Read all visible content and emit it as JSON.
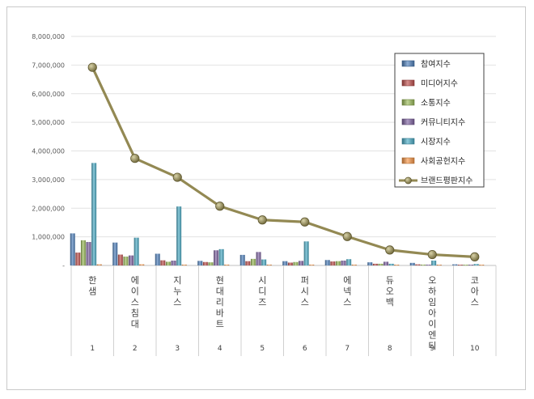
{
  "chart_data": {
    "type": "bar",
    "ylim": [
      0,
      8000000
    ],
    "y_ticks": [
      "-",
      "1,000,000",
      "2,000,000",
      "3,000,000",
      "4,000,000",
      "5,000,000",
      "6,000,000",
      "7,000,000",
      "8,000,000"
    ],
    "grid": true,
    "legend_position": "right",
    "categories": [
      "한샘",
      "에이스침대",
      "지누스",
      "현대리바트",
      "시디즈",
      "퍼시스",
      "에넥스",
      "듀오백",
      "오하임아이엔티",
      "코아스"
    ],
    "ranks": [
      "1",
      "2",
      "3",
      "4",
      "5",
      "6",
      "7",
      "8",
      "9",
      "10"
    ],
    "series": [
      {
        "name": "참여지수",
        "type": "bar",
        "color": "#4f81bd",
        "values": [
          1120000,
          800000,
          410000,
          160000,
          370000,
          150000,
          190000,
          110000,
          90000,
          40000
        ]
      },
      {
        "name": "미디어지수",
        "type": "bar",
        "color": "#c0504d",
        "values": [
          450000,
          380000,
          180000,
          120000,
          150000,
          100000,
          140000,
          60000,
          40000,
          25000
        ]
      },
      {
        "name": "소통지수",
        "type": "bar",
        "color": "#9bbb59",
        "values": [
          880000,
          310000,
          130000,
          110000,
          230000,
          120000,
          150000,
          60000,
          30000,
          20000
        ]
      },
      {
        "name": "커뮤니티지수",
        "type": "bar",
        "color": "#8064a2",
        "values": [
          820000,
          350000,
          170000,
          530000,
          470000,
          160000,
          170000,
          130000,
          30000,
          15000
        ]
      },
      {
        "name": "시장지수",
        "type": "bar",
        "color": "#4bacc6",
        "values": [
          3580000,
          970000,
          2060000,
          570000,
          210000,
          840000,
          220000,
          60000,
          170000,
          50000
        ]
      },
      {
        "name": "사회공헌지수",
        "type": "bar",
        "color": "#f79646",
        "values": [
          40000,
          40000,
          30000,
          30000,
          30000,
          30000,
          30000,
          20000,
          20000,
          15000
        ]
      },
      {
        "name": "브랜드평판지수",
        "type": "line",
        "color": "#938953",
        "values": [
          6920000,
          3740000,
          3080000,
          2070000,
          1590000,
          1520000,
          1010000,
          540000,
          380000,
          300000
        ]
      }
    ]
  }
}
